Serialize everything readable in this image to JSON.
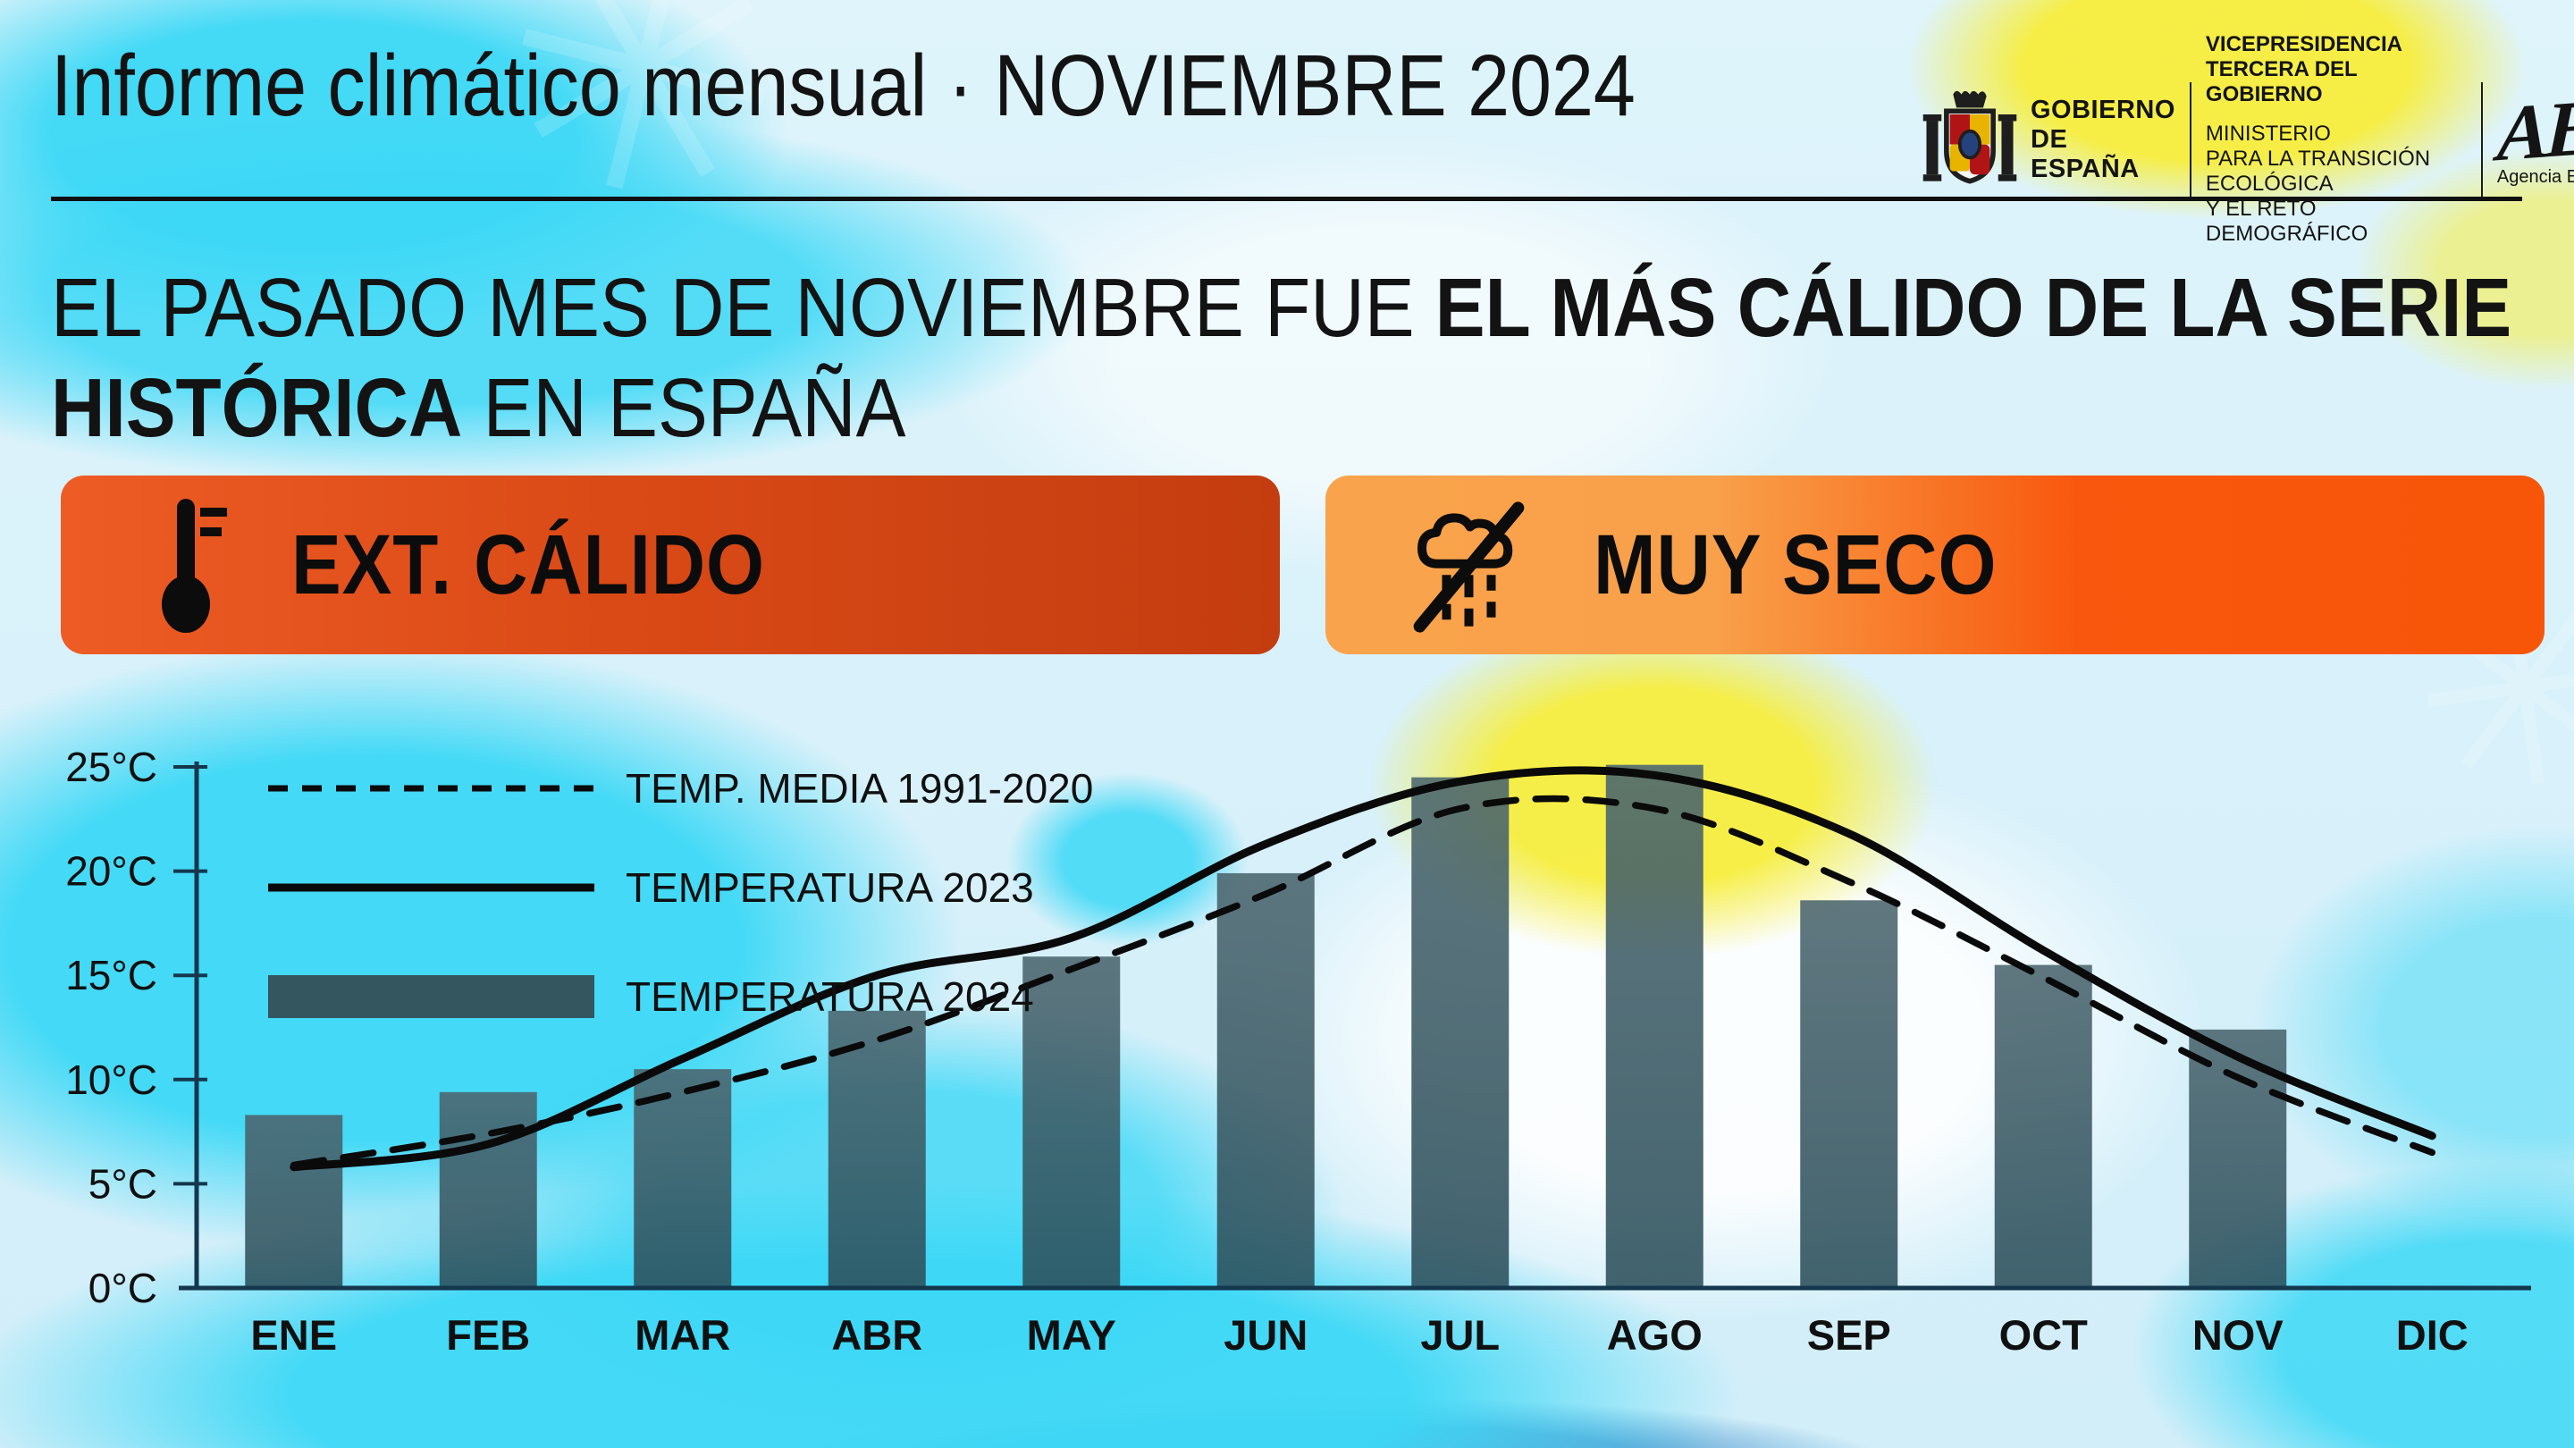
{
  "header": {
    "title": "Informe climático mensual · NOVIEMBRE 2024"
  },
  "gov_block": {
    "gobierno": "GOBIERNO\nDE ESPAÑA",
    "vicepresidencia": "VICEPRESIDENCIA\nTERCERA DEL GOBIERNO",
    "ministerio": "MINISTERIO\nPARA LA TRANSICIÓN ECOLÓGICA\nY EL RETO DEMOGRÁFICO",
    "aemet_mark": "AEMet",
    "aemet_sub": "Agencia Estatal de Meteorología"
  },
  "headline": {
    "lines": [
      [
        {
          "text": "EL PASADO MES DE NOVIEMBRE FUE ",
          "bold": false
        },
        {
          "text": "EL MÁS CÁLIDO DE LA SERIE",
          "bold": true
        }
      ],
      [
        {
          "text": "HISTÓRICA",
          "bold": true
        },
        {
          "text": " EN ESPAÑA",
          "bold": false
        }
      ]
    ]
  },
  "badges": [
    {
      "label": "EXT. CÁLIDO",
      "icon": "thermometer-icon",
      "color_left": "#ee5c25",
      "color_right": "#c43d10"
    },
    {
      "label": "MUY SECO",
      "icon": "no-rain-icon",
      "color_left": "#f9a44c",
      "color_right": "#f75608"
    }
  ],
  "chart_data": {
    "type": "bar",
    "title": "",
    "xlabel": "",
    "ylabel": "",
    "unit": "°C",
    "categories": [
      "ENE",
      "FEB",
      "MAR",
      "ABR",
      "MAY",
      "JUN",
      "JUL",
      "AGO",
      "SEP",
      "OCT",
      "NOV",
      "DIC"
    ],
    "axis": {
      "ymin": 0,
      "ymax": 25,
      "ystep": 5,
      "tick_suffix": "°C",
      "grid": false
    },
    "legend_position": "top-left",
    "series": [
      {
        "name": "TEMP. MEDIA 1991-2020",
        "type": "line",
        "style": "dashed",
        "color": "#0a0a0a",
        "values": [
          5.9,
          7.4,
          9.4,
          11.9,
          15.3,
          18.9,
          23.0,
          23.0,
          19.5,
          14.9,
          10.1,
          6.5
        ]
      },
      {
        "name": "TEMPERATURA 2023",
        "type": "line",
        "style": "solid",
        "color": "#0a0a0a",
        "values": [
          5.8,
          6.9,
          11.0,
          15.0,
          16.8,
          21.3,
          24.3,
          24.6,
          21.8,
          16.2,
          11.1,
          7.3
        ]
      },
      {
        "name": "TEMPERATURA 2024",
        "type": "bar",
        "color": "#33565f",
        "values": [
          8.3,
          9.4,
          10.5,
          13.3,
          15.9,
          19.9,
          24.5,
          25.1,
          18.6,
          15.5,
          12.4,
          null
        ]
      }
    ],
    "colors": {
      "axis": "#14374e",
      "bar_top": "#4b656e",
      "bar_bottom": "#2b4f5b",
      "label": "#101010"
    }
  }
}
